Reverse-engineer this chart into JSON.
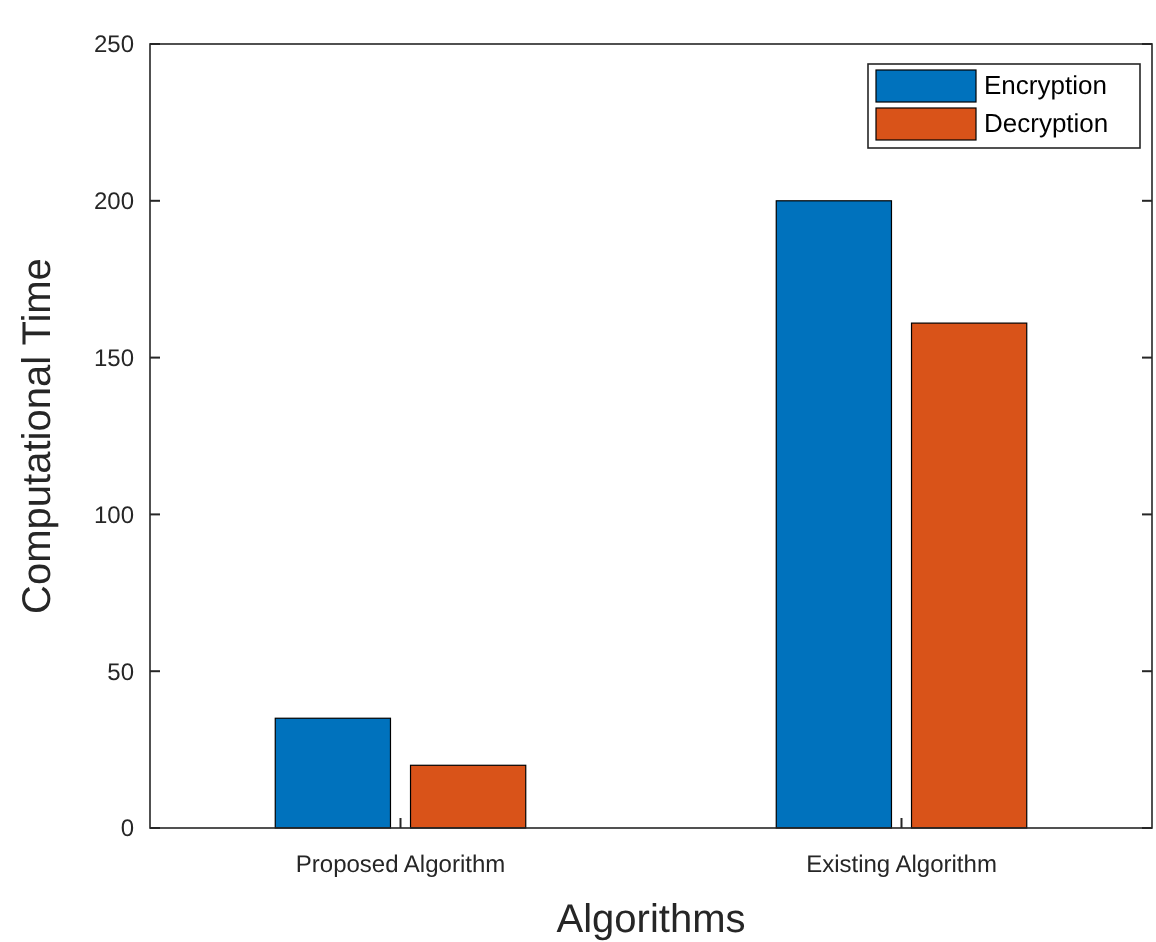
{
  "chart_data": {
    "type": "bar",
    "xlabel": "Algorithms",
    "ylabel": "Computational Time",
    "categories": [
      "Proposed Algorithm",
      "Existing Algorithm"
    ],
    "series": [
      {
        "name": "Encryption",
        "color": "#0072bd",
        "values": [
          35,
          200
        ]
      },
      {
        "name": "Decryption",
        "color": "#d95319",
        "values": [
          20,
          161
        ]
      }
    ],
    "ylim": [
      0,
      250
    ],
    "yticks": [
      0,
      50,
      100,
      150,
      200,
      250
    ],
    "legend": "top right"
  }
}
